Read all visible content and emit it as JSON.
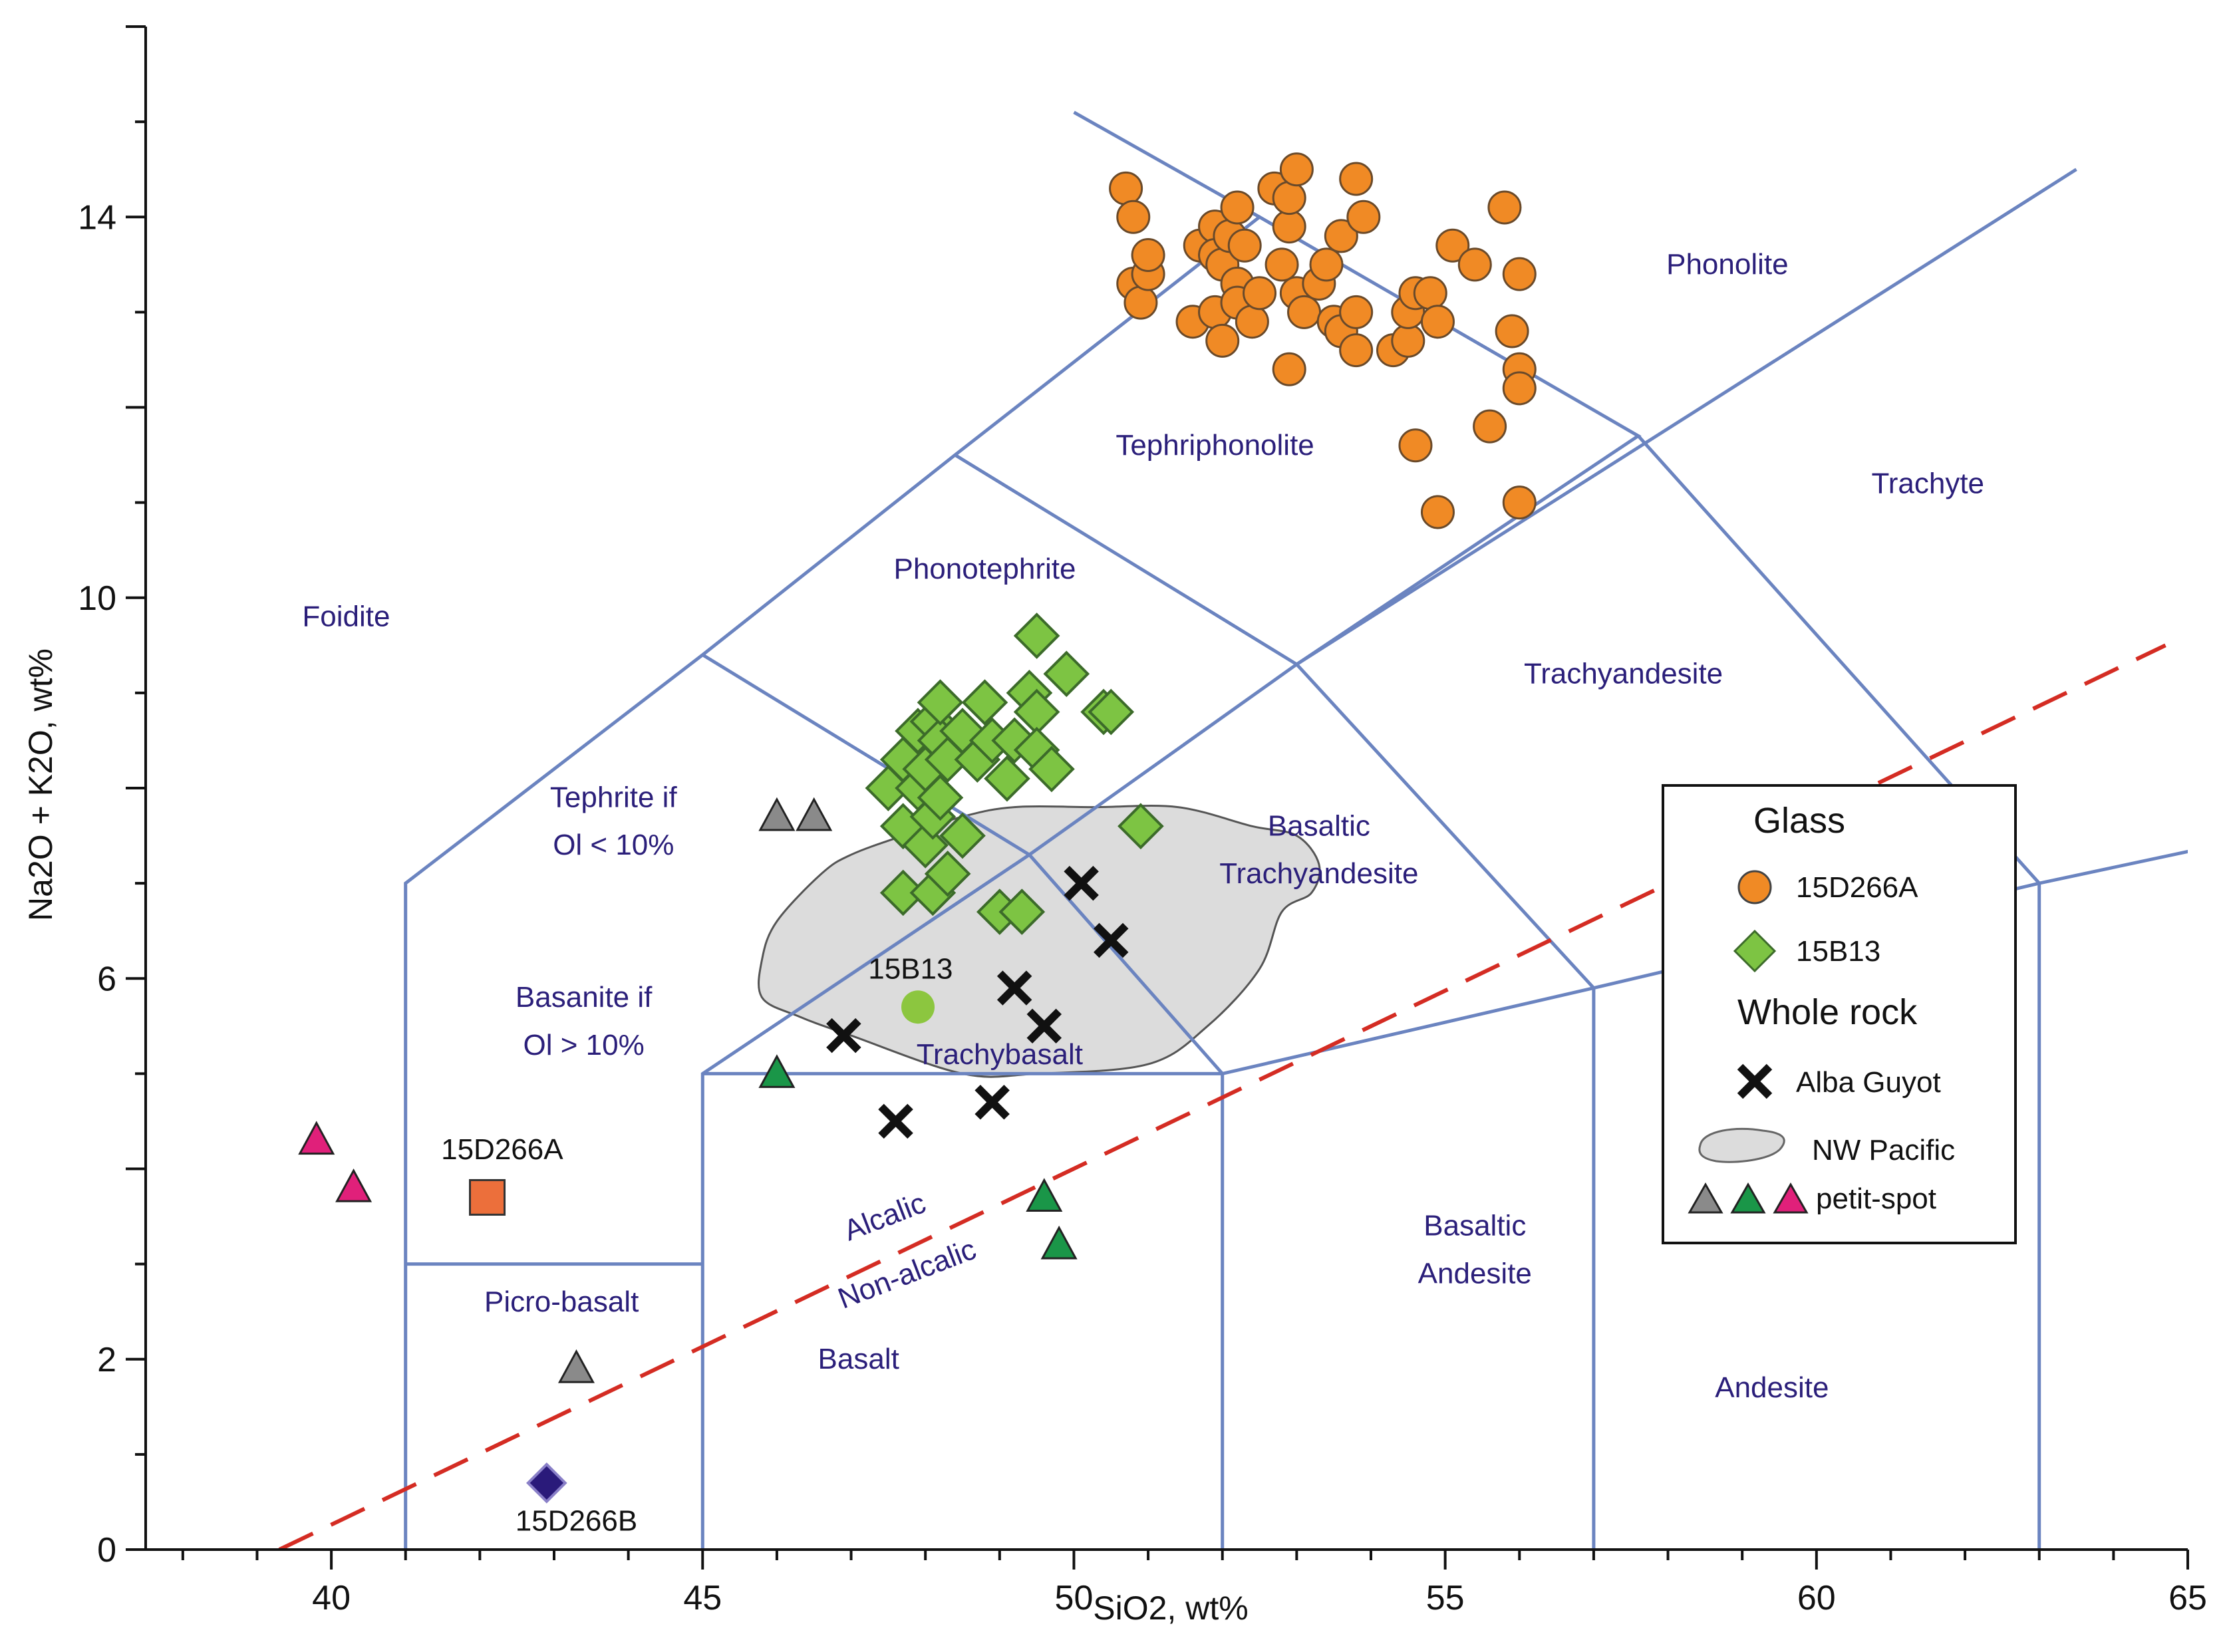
{
  "chart_data": {
    "type": "scatter",
    "title": "",
    "xlabel": "SiO2, wt%",
    "ylabel": "Na2O + K2O, wt%",
    "xlim": [
      37.5,
      65
    ],
    "ylim": [
      0,
      16
    ],
    "x_ticks": [
      40,
      45,
      50,
      55,
      60,
      65
    ],
    "y_ticks": [
      0,
      2,
      6,
      10,
      14
    ],
    "tas_boundaries": [
      [
        [
          41,
          0
        ],
        [
          41,
          7
        ],
        [
          45,
          9.4
        ],
        [
          48.4,
          11.5
        ],
        [
          52.5,
          14
        ],
        [
          57.6,
          11.7
        ],
        [
          53,
          9.3
        ],
        [
          49.4,
          7.3
        ],
        [
          45,
          5
        ],
        [
          45,
          0
        ]
      ],
      [
        [
          41,
          3
        ],
        [
          45,
          3
        ]
      ],
      [
        [
          45,
          5
        ],
        [
          52,
          5
        ],
        [
          57,
          5.9
        ],
        [
          63,
          7
        ]
      ],
      [
        [
          52,
          0
        ],
        [
          52,
          5
        ]
      ],
      [
        [
          57,
          0
        ],
        [
          57,
          5.9
        ]
      ],
      [
        [
          63,
          0
        ],
        [
          63,
          7
        ],
        [
          69,
          8
        ]
      ],
      [
        [
          45,
          9.4
        ],
        [
          49.4,
          7.3
        ]
      ],
      [
        [
          48.4,
          11.5
        ],
        [
          53,
          9.3
        ],
        [
          57,
          5.9
        ]
      ],
      [
        [
          52,
          5
        ],
        [
          49.4,
          7.3
        ]
      ],
      [
        [
          50,
          15.1
        ],
        [
          52.5,
          14
        ]
      ],
      [
        [
          53,
          9.3
        ],
        [
          63.5,
          14.5
        ]
      ],
      [
        [
          57.6,
          11.7
        ],
        [
          63,
          7
        ]
      ]
    ],
    "alkaline_divide": [
      [
        39.3,
        0
      ],
      [
        64.7,
        9.5
      ]
    ],
    "field_labels": [
      {
        "text": "Foidite",
        "x": 40.2,
        "y": 9.7
      },
      {
        "text": "Phonolite",
        "x": 58.8,
        "y": 13.4
      },
      {
        "text": "Tephriphonolite",
        "x": 51.9,
        "y": 11.5
      },
      {
        "text": "Trachyte",
        "x": 61.5,
        "y": 11.1
      },
      {
        "text": "Phonotephrite",
        "x": 48.8,
        "y": 10.2
      },
      {
        "text": "Trachyandesite",
        "x": 57.4,
        "y": 9.1
      },
      {
        "text": "Tephrite if",
        "x": 43.8,
        "y": 7.8
      },
      {
        "text": "Ol < 10%",
        "x": 43.8,
        "y": 7.3
      },
      {
        "text": "Basaltic",
        "x": 53.3,
        "y": 7.5
      },
      {
        "text": "Trachyandesite",
        "x": 53.3,
        "y": 7.0
      },
      {
        "text": "Basanite if",
        "x": 43.4,
        "y": 5.7
      },
      {
        "text": "Ol > 10%",
        "x": 43.4,
        "y": 5.2
      },
      {
        "text": "Trachybasalt",
        "x": 49.0,
        "y": 5.1
      },
      {
        "text": "Picro-basalt",
        "x": 43.1,
        "y": 2.5
      },
      {
        "text": "Basalt",
        "x": 47.1,
        "y": 1.9
      },
      {
        "text": "Basaltic",
        "x": 55.4,
        "y": 3.3
      },
      {
        "text": "Andesite",
        "x": 55.4,
        "y": 2.8
      },
      {
        "text": "Andesite",
        "x": 59.4,
        "y": 1.6
      }
    ],
    "divide_labels": [
      {
        "text": "Alcalic",
        "x": 47.5,
        "y": 3.4,
        "rotate": -21
      },
      {
        "text": "Non-alcalic",
        "x": 47.8,
        "y": 2.8,
        "rotate": -21
      }
    ],
    "sample_labels": [
      {
        "text": "15D266A",
        "x": 42.3,
        "y": 4.1
      },
      {
        "text": "15D266B",
        "x": 43.3,
        "y": 0.2
      },
      {
        "text": "15B13",
        "x": 47.8,
        "y": 6.0
      }
    ],
    "series": [
      {
        "name": "15D266A",
        "group": "Glass",
        "marker": "circle",
        "color": "#f08a25",
        "points": [
          [
            50.7,
            14.3
          ],
          [
            50.8,
            14.0
          ],
          [
            50.8,
            13.3
          ],
          [
            50.9,
            13.1
          ],
          [
            51.0,
            13.4
          ],
          [
            51.0,
            13.6
          ],
          [
            51.6,
            12.9
          ],
          [
            51.7,
            13.7
          ],
          [
            51.9,
            13.9
          ],
          [
            51.9,
            13.6
          ],
          [
            51.9,
            13.0
          ],
          [
            52.0,
            12.7
          ],
          [
            52.0,
            13.5
          ],
          [
            52.1,
            13.8
          ],
          [
            52.2,
            14.1
          ],
          [
            52.2,
            13.3
          ],
          [
            52.2,
            13.1
          ],
          [
            52.3,
            13.7
          ],
          [
            52.4,
            12.9
          ],
          [
            52.5,
            13.2
          ],
          [
            52.7,
            14.3
          ],
          [
            52.8,
            13.5
          ],
          [
            52.9,
            13.9
          ],
          [
            52.9,
            12.4
          ],
          [
            52.9,
            14.2
          ],
          [
            53.0,
            14.5
          ],
          [
            53.0,
            13.2
          ],
          [
            53.1,
            13.0
          ],
          [
            53.3,
            13.3
          ],
          [
            53.4,
            13.5
          ],
          [
            53.5,
            12.9
          ],
          [
            53.6,
            13.8
          ],
          [
            53.6,
            12.8
          ],
          [
            53.8,
            12.6
          ],
          [
            53.8,
            14.4
          ],
          [
            53.8,
            13.0
          ],
          [
            53.9,
            14.0
          ],
          [
            54.3,
            12.6
          ],
          [
            54.5,
            12.7
          ],
          [
            54.5,
            13.0
          ],
          [
            54.6,
            13.2
          ],
          [
            54.6,
            11.6
          ],
          [
            54.8,
            13.2
          ],
          [
            54.9,
            12.9
          ],
          [
            54.9,
            10.9
          ],
          [
            55.1,
            13.7
          ],
          [
            55.4,
            13.5
          ],
          [
            55.6,
            11.8
          ],
          [
            55.8,
            14.1
          ],
          [
            55.9,
            12.8
          ],
          [
            56.0,
            12.4
          ],
          [
            56.0,
            12.2
          ],
          [
            56.0,
            11.0
          ],
          [
            56.0,
            13.4
          ]
        ]
      },
      {
        "name": "15B13",
        "group": "Glass",
        "marker": "diamond",
        "color": "#7dc443",
        "points": [
          [
            47.5,
            8.0
          ],
          [
            47.7,
            8.3
          ],
          [
            47.7,
            7.6
          ],
          [
            47.7,
            6.9
          ],
          [
            47.9,
            8.6
          ],
          [
            47.9,
            8.0
          ],
          [
            48.0,
            8.2
          ],
          [
            48.0,
            7.4
          ],
          [
            48.1,
            8.7
          ],
          [
            48.1,
            7.7
          ],
          [
            48.1,
            6.9
          ],
          [
            48.2,
            8.5
          ],
          [
            48.2,
            8.9
          ],
          [
            48.2,
            7.9
          ],
          [
            48.3,
            8.3
          ],
          [
            48.3,
            7.1
          ],
          [
            48.5,
            8.6
          ],
          [
            48.5,
            7.5
          ],
          [
            48.7,
            8.3
          ],
          [
            48.8,
            8.9
          ],
          [
            48.9,
            8.5
          ],
          [
            49.0,
            6.7
          ],
          [
            49.1,
            8.1
          ],
          [
            49.2,
            8.5
          ],
          [
            49.4,
            9.0
          ],
          [
            49.5,
            8.8
          ],
          [
            49.5,
            8.4
          ],
          [
            49.5,
            9.6
          ],
          [
            49.7,
            8.2
          ],
          [
            49.9,
            9.2
          ],
          [
            50.4,
            8.8
          ],
          [
            50.5,
            8.8
          ],
          [
            50.9,
            7.6
          ],
          [
            49.3,
            6.7
          ]
        ]
      },
      {
        "name": "15B13 (whole rock)",
        "group": "Sample",
        "marker": "circle",
        "color": "#8cc63f",
        "points": [
          [
            47.9,
            5.7
          ]
        ]
      },
      {
        "name": "Alba Guyot",
        "group": "Whole rock",
        "marker": "x",
        "color": "#111111",
        "points": [
          [
            46.9,
            5.4
          ],
          [
            47.6,
            4.5
          ],
          [
            48.9,
            4.7
          ],
          [
            49.2,
            5.9
          ],
          [
            49.6,
            5.5
          ],
          [
            50.1,
            7.0
          ],
          [
            50.5,
            6.4
          ]
        ]
      },
      {
        "name": "15D266A",
        "group": "Sample",
        "marker": "square",
        "color": "#ec6f3b",
        "points": [
          [
            42.1,
            3.7
          ]
        ]
      },
      {
        "name": "15D266B",
        "group": "Sample",
        "marker": "diamond",
        "color": "#2a1a7a",
        "points": [
          [
            42.9,
            0.7
          ]
        ]
      },
      {
        "name": "NW Pacific petit-spot (grey)",
        "group": "NW Pacific petit-spot",
        "marker": "triangle",
        "color": "#8a8a8a",
        "points": [
          [
            46.0,
            7.7
          ],
          [
            46.5,
            7.7
          ],
          [
            43.3,
            1.9
          ]
        ]
      },
      {
        "name": "NW Pacific petit-spot (green)",
        "group": "NW Pacific petit-spot",
        "marker": "triangle",
        "color": "#1a9648",
        "points": [
          [
            46.0,
            5.0
          ],
          [
            49.6,
            3.7
          ],
          [
            49.8,
            3.2
          ]
        ]
      },
      {
        "name": "NW Pacific petit-spot (pink)",
        "group": "NW Pacific petit-spot",
        "marker": "triangle",
        "color": "#e0207a",
        "points": [
          [
            39.8,
            4.3
          ],
          [
            40.3,
            3.8
          ]
        ]
      }
    ],
    "nw_pacific_field": {
      "label": "NW Pacific",
      "color": "#dcdcdc",
      "outline": [
        [
          45.8,
          6.2
        ],
        [
          46.0,
          6.6
        ],
        [
          46.6,
          7.1
        ],
        [
          47.0,
          7.3
        ],
        [
          47.7,
          7.5
        ],
        [
          48.5,
          7.7
        ],
        [
          49.2,
          7.8
        ],
        [
          50.3,
          7.8
        ],
        [
          51.4,
          7.8
        ],
        [
          52.4,
          7.6
        ],
        [
          53.0,
          7.5
        ],
        [
          53.3,
          7.2
        ],
        [
          53.2,
          6.9
        ],
        [
          52.8,
          6.7
        ],
        [
          52.5,
          6.1
        ],
        [
          51.8,
          5.5
        ],
        [
          51.0,
          5.1
        ],
        [
          49.5,
          5.0
        ],
        [
          48.5,
          5.0
        ],
        [
          47.0,
          5.4
        ],
        [
          46.3,
          5.6
        ],
        [
          45.8,
          5.8
        ]
      ]
    },
    "legend": {
      "position": "right",
      "glass_heading": "Glass",
      "whole_rock_heading": "Whole rock",
      "glass_items": [
        "15D266A",
        "15B13"
      ],
      "whole_rock_items": [
        "Alba Guyot"
      ],
      "field_item_line1": "NW Pacific",
      "field_item_line2": "petit-spot"
    },
    "colors": {
      "boundary": "#6b84c0",
      "divide": "#d42c23",
      "field_text": "#2b1f7a",
      "marker_outline": "#444444"
    }
  }
}
